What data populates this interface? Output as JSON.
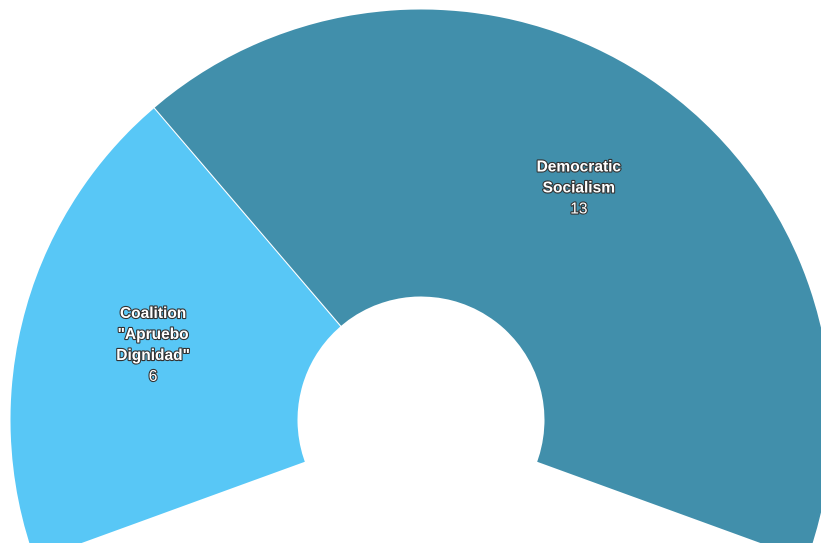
{
  "chart_data": {
    "type": "pie",
    "subtype": "semicircle-donut",
    "slices": [
      {
        "label": "Coalition \"Apruebo Dignidad\"",
        "label_lines": [
          "Coalition",
          "\"Apruebo",
          "Dignidad\""
        ],
        "value": 6,
        "display_value": "6",
        "color": "#58c7f6"
      },
      {
        "label": "Democratic Socialism",
        "label_lines": [
          "Democratic",
          "Socialism"
        ],
        "value": 13,
        "display_value": "13",
        "color": "#418fab"
      }
    ],
    "total": 19,
    "legend": "none",
    "background": "#ffffff"
  }
}
